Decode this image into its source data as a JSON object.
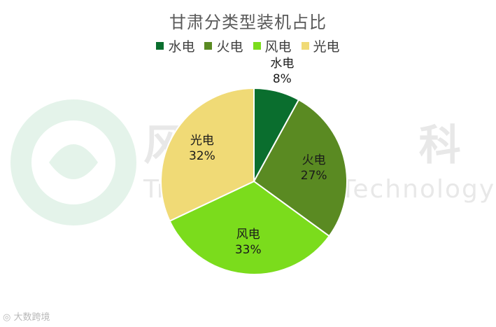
{
  "chart_data": {
    "type": "pie",
    "title": "甘肃分类型装机占比",
    "categories": [
      "水电",
      "火电",
      "风电",
      "光电"
    ],
    "values": [
      8,
      27,
      33,
      32
    ],
    "value_labels": [
      "8%",
      "27%",
      "33%",
      "32%"
    ],
    "colors": [
      "#0a6e2e",
      "#5a8a22",
      "#7bdc1c",
      "#f0da76"
    ],
    "legend_position": "top"
  },
  "watermark": {
    "chinese": "风 向 科 技",
    "english": "Trading Trend Technology"
  },
  "logo": {
    "text": "大数跨境"
  }
}
